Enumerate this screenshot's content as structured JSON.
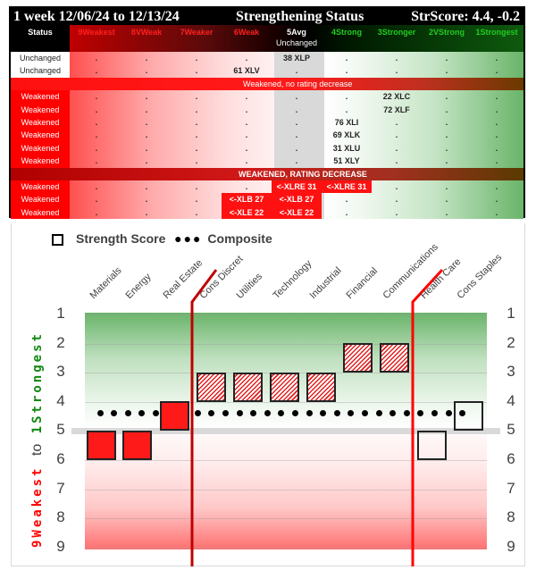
{
  "table": {
    "title_left": "1 week 12/06/24 to 12/13/24",
    "title_center": "Strengthening Status",
    "title_right": "StrScore: 4.4, -0.2",
    "columns": [
      {
        "label": "Status",
        "color": "#ffffff"
      },
      {
        "label": "9Weakest",
        "color": "#ff2020"
      },
      {
        "label": "8VWeak",
        "color": "#ff2020"
      },
      {
        "label": "7Weaker",
        "color": "#ff2020"
      },
      {
        "label": "6Weak",
        "color": "#ff2020"
      },
      {
        "label": "5Avg",
        "sub": "Unchanged",
        "color": "#ffffff"
      },
      {
        "label": "4Strong",
        "color": "#22cc22"
      },
      {
        "label": "3Stronger",
        "color": "#22cc22"
      },
      {
        "label": "2VStrong",
        "color": "#22cc22"
      },
      {
        "label": "1Strongest",
        "color": "#22cc22"
      }
    ],
    "unchanged_rows": [
      {
        "status": "Unchanged",
        "cells": [
          ".",
          ".",
          ".",
          ".",
          "38 XLP",
          ".",
          ".",
          ".",
          "."
        ]
      },
      {
        "status": "Unchanged",
        "cells": [
          ".",
          ".",
          ".",
          "61 XLV",
          ".",
          ".",
          ".",
          ".",
          "."
        ]
      }
    ],
    "band_no_decrease": "Weakened, no rating decrease",
    "weakened_rows": [
      {
        "status": "Weakened",
        "cells": [
          ".",
          ".",
          ".",
          ".",
          ".",
          ".",
          "22 XLC",
          ".",
          "."
        ]
      },
      {
        "status": "Weakened",
        "cells": [
          ".",
          ".",
          ".",
          ".",
          ".",
          ".",
          "72 XLF",
          ".",
          "."
        ]
      },
      {
        "status": "Weakened",
        "cells": [
          ".",
          ".",
          ".",
          ".",
          ".",
          "76 XLI",
          ".",
          ".",
          "."
        ]
      },
      {
        "status": "Weakened",
        "cells": [
          ".",
          ".",
          ".",
          ".",
          ".",
          "69 XLK",
          ".",
          ".",
          "."
        ]
      },
      {
        "status": "Weakened",
        "cells": [
          ".",
          ".",
          ".",
          ".",
          ".",
          "31 XLU",
          ".",
          ".",
          "."
        ]
      },
      {
        "status": "Weakened",
        "cells": [
          ".",
          ".",
          ".",
          ".",
          ".",
          "51 XLY",
          ".",
          ".",
          "."
        ]
      }
    ],
    "band_decrease": "WEAKENED, RATING DECREASE",
    "decrease_rows": [
      {
        "status": "Weakened",
        "cells": [
          ".",
          ".",
          ".",
          ".",
          "<-XLRE 31",
          "<-XLRE 31",
          ".",
          ".",
          "."
        ]
      },
      {
        "status": "Weakened",
        "cells": [
          ".",
          ".",
          ".",
          "<-XLB 27",
          "<-XLB 27",
          ".",
          ".",
          ".",
          "."
        ]
      },
      {
        "status": "Weakened",
        "cells": [
          ".",
          ".",
          ".",
          "<-XLE 22",
          "<-XLE 22",
          ".",
          ".",
          ".",
          "."
        ]
      }
    ]
  },
  "chart_data": {
    "type": "scatter",
    "title": "",
    "legend": [
      {
        "marker": "square",
        "label": "Strength Score"
      },
      {
        "marker": "dots",
        "label": "Composite"
      }
    ],
    "categories": [
      "Materials",
      "Energy",
      "Real Estate",
      "Cons Discret",
      "Utilities",
      "Technology",
      "Industrial",
      "Financial",
      "Communications",
      "Health Care",
      "Cons Staples"
    ],
    "series": [
      {
        "name": "Strength Score",
        "values": [
          6,
          6,
          5,
          4,
          4,
          4,
          4,
          3,
          3,
          6,
          5
        ],
        "styles": [
          "solid",
          "solid",
          "solid",
          "hatch",
          "hatch",
          "hatch",
          "hatch",
          "hatch",
          "hatch",
          "hollow",
          "hollow"
        ]
      },
      {
        "name": "Composite",
        "value": 4.4
      }
    ],
    "ylabel_top": "1Strongest",
    "ylabel_mid": "to",
    "ylabel_bottom": "9Weakest",
    "ylim": [
      1,
      9
    ],
    "yticks": [
      "1",
      "2",
      "3",
      "4",
      "5",
      "6",
      "7",
      "8",
      "9"
    ],
    "reference_line": 5,
    "dividers_after": [
      "Real Estate",
      "Communications"
    ],
    "grid": true
  }
}
